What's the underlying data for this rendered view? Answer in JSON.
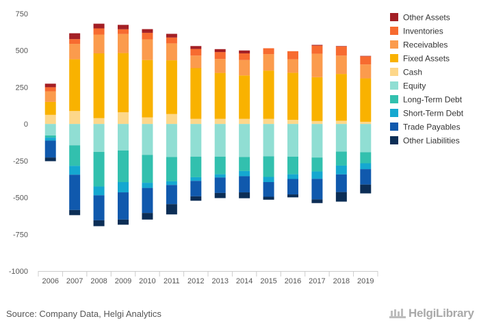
{
  "source": "Source: Company Data, Helgi Analytics",
  "brand": "HelgiLibrary",
  "chart_data": {
    "type": "bar",
    "stacked": true,
    "categories": [
      "2006",
      "2007",
      "2008",
      "2009",
      "2010",
      "2011",
      "2012",
      "2013",
      "2014",
      "2015",
      "2016",
      "2017",
      "2018",
      "2019"
    ],
    "ylim": [
      -1000,
      750
    ],
    "yticks": [
      750,
      500,
      250,
      0,
      -250,
      -500,
      -750,
      -1000
    ],
    "ytick_labels": [
      "750",
      "500",
      "250",
      "0",
      "-250",
      "-500",
      "-750",
      "-1000"
    ],
    "grid": false,
    "legend_position": "right",
    "positive_series": [
      {
        "name": "Cash",
        "color": "#FDD78A",
        "values": [
          62,
          88,
          40,
          80,
          45,
          68,
          35,
          35,
          35,
          35,
          28,
          20,
          22,
          15
        ]
      },
      {
        "name": "Fixed Assets",
        "color": "#F9B200",
        "values": [
          88,
          352,
          440,
          402,
          390,
          365,
          345,
          312,
          295,
          328,
          320,
          298,
          318,
          295
        ]
      },
      {
        "name": "Receivables",
        "color": "#FB9B4D",
        "values": [
          72,
          105,
          128,
          130,
          140,
          115,
          85,
          95,
          105,
          112,
          92,
          160,
          125,
          95
        ]
      },
      {
        "name": "Inventories",
        "color": "#F76B30",
        "values": [
          28,
          32,
          42,
          32,
          45,
          40,
          45,
          47,
          45,
          40,
          55,
          55,
          62,
          55
        ]
      },
      {
        "name": "Other Assets",
        "color": "#A31F25",
        "values": [
          24,
          40,
          32,
          30,
          25,
          25,
          20,
          20,
          20,
          0,
          0,
          5,
          3,
          3
        ]
      }
    ],
    "negative_series": [
      {
        "name": "Equity",
        "color": "#90DED3",
        "values": [
          -78,
          -145,
          -190,
          -180,
          -210,
          -225,
          -222,
          -222,
          -225,
          -220,
          -222,
          -228,
          -188,
          -192
        ]
      },
      {
        "name": "Long-Term Debt",
        "color": "#32C0AE",
        "values": [
          -15,
          -140,
          -235,
          -215,
          -190,
          -165,
          -140,
          -120,
          -95,
          -140,
          -120,
          -95,
          -95,
          -75
        ]
      },
      {
        "name": "Short-Term Debt",
        "color": "#15A8D0",
        "values": [
          -20,
          -60,
          -60,
          -70,
          -35,
          -25,
          -25,
          -22,
          -35,
          -35,
          -32,
          -50,
          -60,
          -40
        ]
      },
      {
        "name": "Trade Payables",
        "color": "#1059AD",
        "values": [
          -115,
          -240,
          -170,
          -185,
          -170,
          -130,
          -105,
          -105,
          -110,
          -100,
          -105,
          -140,
          -120,
          -105
        ]
      },
      {
        "name": "Other Liabilities",
        "color": "#0C2E56",
        "values": [
          -25,
          -35,
          -40,
          -35,
          -45,
          -70,
          -30,
          -35,
          -40,
          -20,
          -20,
          -25,
          -65,
          -60
        ]
      }
    ],
    "legend_order": [
      "Other Assets",
      "Inventories",
      "Receivables",
      "Fixed Assets",
      "Cash",
      "Equity",
      "Long-Term Debt",
      "Short-Term Debt",
      "Trade Payables",
      "Other Liabilities"
    ]
  }
}
